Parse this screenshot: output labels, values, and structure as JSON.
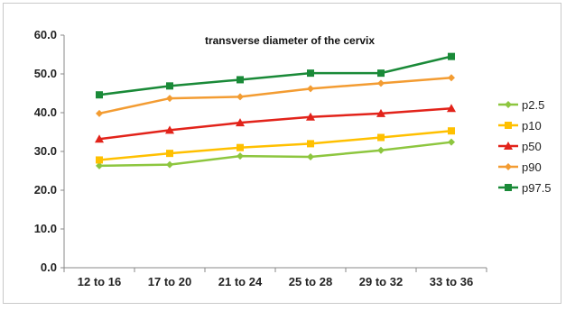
{
  "chart_data": {
    "type": "line",
    "title": "transverse diameter of the cervix",
    "categories": [
      "12 to 16",
      "17 to 20",
      "21 to 24",
      "25 to 28",
      "29 to 32",
      "33 to 36"
    ],
    "y_ticks": [
      "0.0",
      "10.0",
      "20.0",
      "30.0",
      "40.0",
      "50.0",
      "60.0"
    ],
    "ylim": [
      0,
      60
    ],
    "grid": false,
    "legend_position": "right",
    "series": [
      {
        "name": "p2.5",
        "color": "#8dc63f",
        "marker": "diamond",
        "values": [
          26.3,
          26.6,
          28.8,
          28.6,
          30.3,
          32.4
        ]
      },
      {
        "name": "p10",
        "color": "#ffc000",
        "marker": "square",
        "values": [
          27.8,
          29.5,
          31.0,
          32.0,
          33.6,
          35.3
        ]
      },
      {
        "name": "p50",
        "color": "#e2231a",
        "marker": "triangle",
        "values": [
          33.2,
          35.5,
          37.4,
          38.9,
          39.8,
          41.1
        ]
      },
      {
        "name": "p90",
        "color": "#f39c32",
        "marker": "diamond",
        "values": [
          39.8,
          43.7,
          44.1,
          46.2,
          47.6,
          49.0
        ]
      },
      {
        "name": "p97.5",
        "color": "#1a8a38",
        "marker": "square",
        "values": [
          44.6,
          46.9,
          48.5,
          50.2,
          50.2,
          54.5
        ]
      }
    ]
  }
}
